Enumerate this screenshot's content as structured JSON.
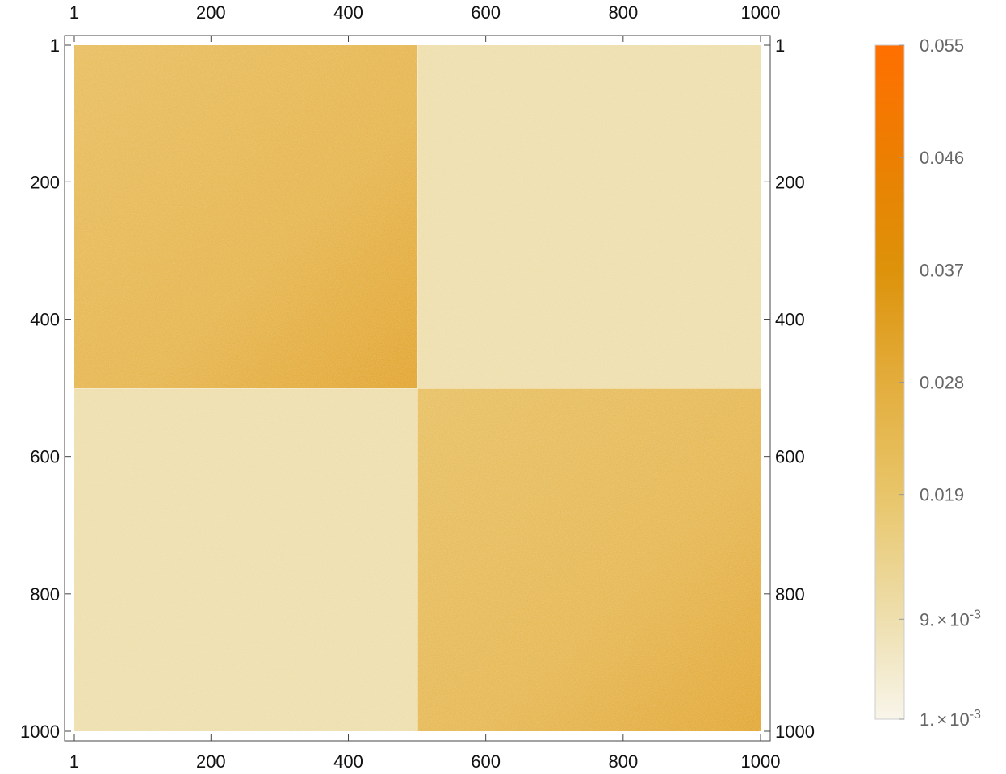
{
  "chart_data": {
    "type": "heatmap",
    "title": "",
    "xlabel": "",
    "ylabel": "",
    "rows": 1000,
    "cols": 1000,
    "x_ticks": [
      "1",
      "200",
      "400",
      "600",
      "800",
      "1000"
    ],
    "x_tick_values": [
      1,
      200,
      400,
      600,
      800,
      1000
    ],
    "y_ticks": [
      "1",
      "200",
      "400",
      "600",
      "800",
      "1000"
    ],
    "y_tick_values": [
      1,
      200,
      400,
      600,
      800,
      1000
    ],
    "blocks": [
      {
        "rows": [
          1,
          500
        ],
        "cols": [
          1,
          500
        ],
        "mean_value": 0.027,
        "gradient_to_corner": "bottom-right",
        "corner_value": 0.033
      },
      {
        "rows": [
          1,
          500
        ],
        "cols": [
          501,
          1000
        ],
        "mean_value": 0.01
      },
      {
        "rows": [
          501,
          1000
        ],
        "cols": [
          1,
          500
        ],
        "mean_value": 0.01
      },
      {
        "rows": [
          501,
          1000
        ],
        "cols": [
          501,
          1000
        ],
        "mean_value": 0.026,
        "gradient_to_corner": "bottom-right",
        "corner_value": 0.032
      }
    ],
    "colorbar": {
      "min": 0.001,
      "max": 0.055,
      "tick_values": [
        0.001,
        0.009,
        0.019,
        0.028,
        0.037,
        0.046,
        0.055
      ],
      "tick_labels": [
        {
          "mantissa": "1.",
          "exponent": "-3"
        },
        {
          "mantissa": "9.",
          "exponent": "-3"
        },
        {
          "text": "0.019"
        },
        {
          "text": "0.028"
        },
        {
          "text": "0.037"
        },
        {
          "text": "0.046"
        },
        {
          "text": "0.055"
        }
      ],
      "colors": [
        "#f8f5ea",
        "#eedfae",
        "#e8c569",
        "#e3ad3c",
        "#dd920a",
        "#ec7f02",
        "#ff6f00"
      ]
    }
  }
}
